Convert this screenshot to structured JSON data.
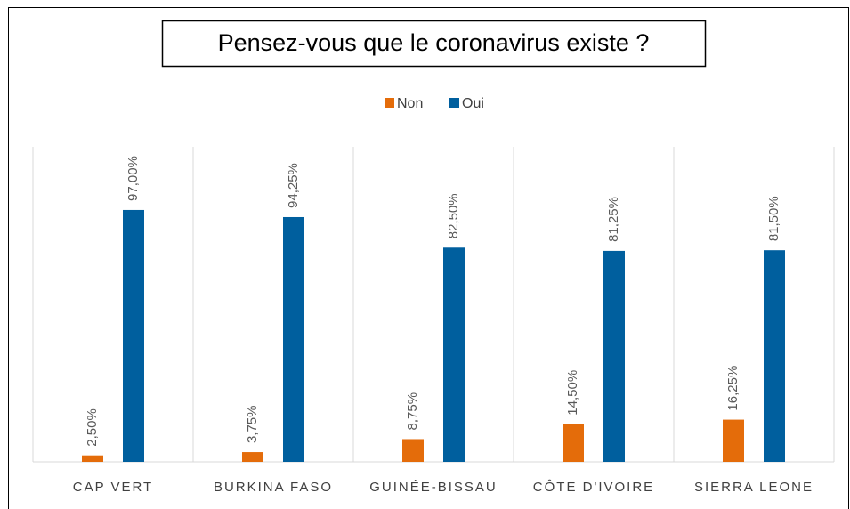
{
  "chart_data": {
    "type": "bar",
    "title": "Pensez-vous que le coronavirus existe ?",
    "categories": [
      "CAP VERT",
      "BURKINA FASO",
      "GUINÉE-BISSAU",
      "CÔTE D'IVOIRE",
      "SIERRA LEONE"
    ],
    "series": [
      {
        "name": "Non",
        "color": "#e46c0a",
        "values": [
          2.5,
          3.75,
          8.75,
          14.5,
          16.25
        ],
        "value_labels": [
          "2,50%",
          "3,75%",
          "8,75%",
          "14,50%",
          "16,25%"
        ]
      },
      {
        "name": "Oui",
        "color": "#005f9e",
        "values": [
          97,
          94.25,
          82.5,
          81.25,
          81.5
        ],
        "value_labels": [
          "97,00%",
          "94,25%",
          "82,50%",
          "81,25%",
          "81,50%"
        ]
      }
    ],
    "grid": true
  }
}
